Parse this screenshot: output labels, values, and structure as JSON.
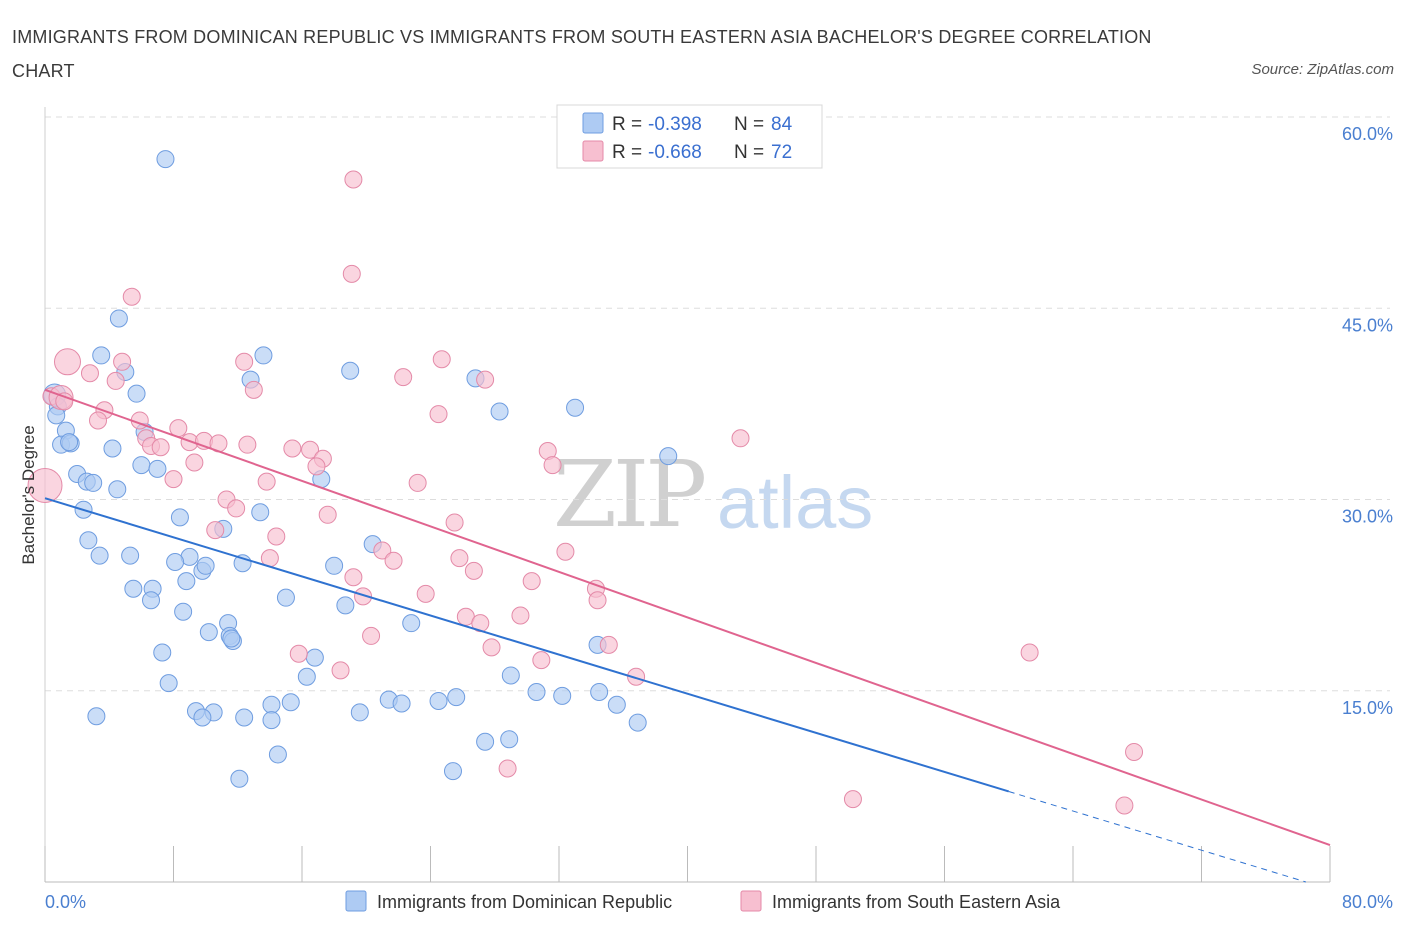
{
  "title": "IMMIGRANTS FROM DOMINICAN REPUBLIC VS IMMIGRANTS FROM SOUTH EASTERN ASIA BACHELOR'S DEGREE CORRELATION CHART",
  "source": "Source: ZipAtlas.com",
  "watermark": {
    "zip": "ZIP",
    "atlas": "atlas"
  },
  "colors": {
    "blue_fill": "#aecbf3",
    "blue_stroke": "#6f9de0",
    "blue_line": "#2f72d0",
    "pink_fill": "#f7bfd0",
    "pink_stroke": "#e48aa8",
    "pink_line": "#e0648f",
    "tick": "#4a7fd0",
    "grid": "#dddddd"
  },
  "legend": {
    "series1": {
      "r_label": "R =",
      "r_value": "-0.398",
      "n_label": "N =",
      "n_value": "84"
    },
    "series2": {
      "r_label": "R =",
      "r_value": "-0.668",
      "n_label": "N =",
      "n_value": "72"
    }
  },
  "chart_data": {
    "type": "scatter",
    "title": "IMMIGRANTS FROM DOMINICAN REPUBLIC VS IMMIGRANTS FROM SOUTH EASTERN ASIA BACHELOR'S DEGREE CORRELATION CHART",
    "xlabel": "",
    "ylabel": "Bachelor's Degree",
    "xlim": [
      0,
      80
    ],
    "ylim": [
      0,
      60
    ],
    "x_tick_labels": [
      {
        "value": 0,
        "label": "0.0%"
      },
      {
        "value": 80,
        "label": "80.0%"
      }
    ],
    "y_tick_labels": [
      {
        "value": 15,
        "label": "15.0%"
      },
      {
        "value": 30,
        "label": "30.0%"
      },
      {
        "value": 45,
        "label": "45.0%"
      },
      {
        "value": 60,
        "label": "60.0%"
      }
    ],
    "grid": "horizontal dashed",
    "legend_position": "top-center",
    "series": [
      {
        "name": "Immigrants from Dominican Republic",
        "color": "#aecbf3",
        "trend": {
          "x0": 0,
          "y0": 30.1,
          "x1": 60,
          "y1": 7.1,
          "dashed_to_x": 78.5,
          "dashed_to_y": 0
        },
        "points": [
          [
            7.5,
            56.7
          ],
          [
            4.6,
            44.2
          ],
          [
            3.5,
            41.3
          ],
          [
            13.6,
            41.3
          ],
          [
            5.0,
            40.0
          ],
          [
            12.8,
            39.4
          ],
          [
            19.0,
            40.1
          ],
          [
            26.8,
            39.5
          ],
          [
            28.3,
            36.9
          ],
          [
            33.0,
            37.2
          ],
          [
            0.6,
            38.2
          ],
          [
            0.8,
            37.3
          ],
          [
            5.7,
            38.3
          ],
          [
            0.7,
            36.6
          ],
          [
            1.3,
            35.4
          ],
          [
            6.2,
            35.3
          ],
          [
            1.0,
            34.3
          ],
          [
            1.6,
            34.4
          ],
          [
            1.5,
            34.5
          ],
          [
            4.2,
            34.0
          ],
          [
            6.0,
            32.7
          ],
          [
            7.0,
            32.4
          ],
          [
            2.0,
            32.0
          ],
          [
            2.6,
            31.4
          ],
          [
            3.0,
            31.3
          ],
          [
            4.5,
            30.8
          ],
          [
            17.2,
            31.6
          ],
          [
            38.8,
            33.4
          ],
          [
            2.4,
            29.2
          ],
          [
            8.4,
            28.6
          ],
          [
            11.1,
            27.7
          ],
          [
            13.4,
            29.0
          ],
          [
            2.7,
            26.8
          ],
          [
            20.4,
            26.5
          ],
          [
            3.4,
            25.6
          ],
          [
            5.3,
            25.6
          ],
          [
            9.0,
            25.5
          ],
          [
            8.1,
            25.1
          ],
          [
            12.3,
            25.0
          ],
          [
            9.8,
            24.4
          ],
          [
            10.0,
            24.8
          ],
          [
            18.0,
            24.8
          ],
          [
            8.8,
            23.6
          ],
          [
            5.5,
            23.0
          ],
          [
            6.7,
            23.0
          ],
          [
            6.6,
            22.1
          ],
          [
            15.0,
            22.3
          ],
          [
            18.7,
            21.7
          ],
          [
            8.6,
            21.2
          ],
          [
            11.4,
            20.3
          ],
          [
            22.8,
            20.3
          ],
          [
            10.2,
            19.6
          ],
          [
            11.5,
            19.3
          ],
          [
            11.7,
            18.9
          ],
          [
            11.6,
            19.1
          ],
          [
            7.3,
            18.0
          ],
          [
            16.8,
            17.6
          ],
          [
            34.4,
            18.6
          ],
          [
            7.7,
            15.6
          ],
          [
            16.3,
            16.1
          ],
          [
            29.0,
            16.2
          ],
          [
            30.6,
            14.9
          ],
          [
            34.5,
            14.9
          ],
          [
            32.2,
            14.6
          ],
          [
            25.6,
            14.5
          ],
          [
            24.5,
            14.2
          ],
          [
            21.4,
            14.3
          ],
          [
            22.2,
            14.0
          ],
          [
            15.3,
            14.1
          ],
          [
            14.1,
            13.9
          ],
          [
            35.6,
            13.9
          ],
          [
            9.4,
            13.4
          ],
          [
            10.5,
            13.3
          ],
          [
            19.6,
            13.3
          ],
          [
            9.8,
            12.9
          ],
          [
            12.4,
            12.9
          ],
          [
            14.1,
            12.7
          ],
          [
            36.9,
            12.5
          ],
          [
            27.4,
            11.0
          ],
          [
            28.9,
            11.2
          ],
          [
            14.5,
            10.0
          ],
          [
            25.4,
            8.7
          ],
          [
            12.1,
            8.1
          ],
          [
            3.2,
            13.0
          ]
        ]
      },
      {
        "name": "Immigrants from South Eastern Asia",
        "color": "#f7bfd0",
        "trend": {
          "x0": 0,
          "y0": 38.6,
          "x1": 80,
          "y1": 2.9
        },
        "points": [
          [
            19.2,
            55.1
          ],
          [
            19.1,
            47.7
          ],
          [
            5.4,
            45.9
          ],
          [
            1.4,
            40.8
          ],
          [
            4.8,
            40.8
          ],
          [
            12.4,
            40.8
          ],
          [
            24.7,
            41.0
          ],
          [
            2.8,
            39.9
          ],
          [
            4.4,
            39.3
          ],
          [
            13.0,
            38.6
          ],
          [
            22.3,
            39.6
          ],
          [
            27.4,
            39.4
          ],
          [
            0.4,
            38.1
          ],
          [
            1.0,
            38.0
          ],
          [
            1.2,
            37.7
          ],
          [
            3.7,
            37.0
          ],
          [
            3.3,
            36.2
          ],
          [
            24.5,
            36.7
          ],
          [
            5.9,
            36.2
          ],
          [
            8.3,
            35.6
          ],
          [
            6.3,
            34.8
          ],
          [
            6.6,
            34.2
          ],
          [
            9.0,
            34.5
          ],
          [
            7.2,
            34.1
          ],
          [
            9.9,
            34.6
          ],
          [
            10.8,
            34.4
          ],
          [
            12.6,
            34.3
          ],
          [
            15.4,
            34.0
          ],
          [
            16.5,
            33.9
          ],
          [
            31.3,
            33.8
          ],
          [
            43.3,
            34.8
          ],
          [
            17.3,
            33.2
          ],
          [
            9.3,
            32.9
          ],
          [
            16.9,
            32.6
          ],
          [
            31.6,
            32.7
          ],
          [
            8.0,
            31.6
          ],
          [
            13.8,
            31.4
          ],
          [
            23.2,
            31.3
          ],
          [
            11.3,
            30.0
          ],
          [
            11.9,
            29.3
          ],
          [
            17.6,
            28.8
          ],
          [
            25.5,
            28.2
          ],
          [
            10.6,
            27.6
          ],
          [
            14.4,
            27.1
          ],
          [
            21.0,
            26.0
          ],
          [
            32.4,
            25.9
          ],
          [
            14.0,
            25.4
          ],
          [
            25.8,
            25.4
          ],
          [
            21.7,
            25.2
          ],
          [
            26.7,
            24.4
          ],
          [
            19.2,
            23.9
          ],
          [
            30.3,
            23.6
          ],
          [
            34.3,
            23.0
          ],
          [
            23.7,
            22.6
          ],
          [
            19.8,
            22.4
          ],
          [
            34.4,
            22.1
          ],
          [
            29.6,
            20.9
          ],
          [
            26.2,
            20.8
          ],
          [
            27.1,
            20.3
          ],
          [
            20.3,
            19.3
          ],
          [
            35.1,
            18.6
          ],
          [
            27.8,
            18.4
          ],
          [
            15.8,
            17.9
          ],
          [
            61.3,
            18.0
          ],
          [
            30.9,
            17.4
          ],
          [
            18.4,
            16.6
          ],
          [
            36.8,
            16.1
          ],
          [
            67.8,
            10.2
          ],
          [
            28.8,
            8.9
          ],
          [
            50.3,
            6.5
          ],
          [
            67.2,
            6.0
          ],
          [
            0.0,
            31.1
          ]
        ]
      }
    ]
  }
}
